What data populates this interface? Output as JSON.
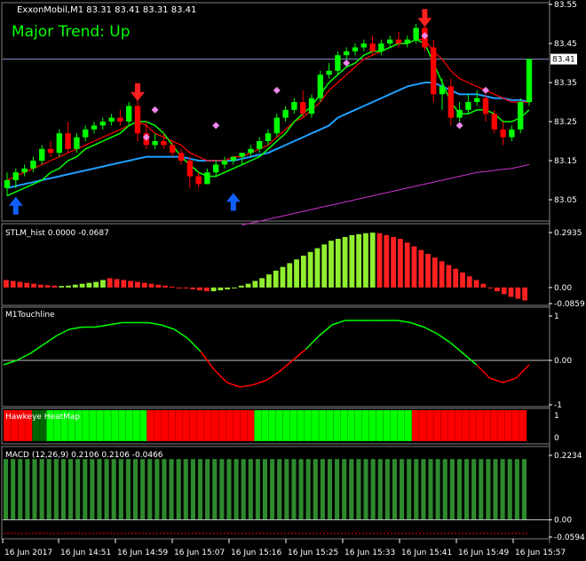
{
  "header": {
    "symbol_info": "ExxonMobil,M1  83.31 83.41 83.31 83.41",
    "trend_label": "Major Trend: Up",
    "current_price": "83.41"
  },
  "colors": {
    "bull_candle": "#00ff00",
    "bear_candle": "#ff0000",
    "ma_fast": "#00ff00",
    "ma_red": "#ff0000",
    "ma_blue": "#1e9fff",
    "ma_magenta": "#cc33cc",
    "grid": "#1f1f1f",
    "axis": "#ffffff",
    "hist_green": "#90ee30",
    "hist_red": "#ff2020",
    "macd_bar": "#2d8a2d",
    "heat_green": "#00ff00",
    "heat_red": "#ff0000",
    "heat_dark": "#006400",
    "price_line": "#8899cc"
  },
  "time_axis": {
    "labels": [
      "16 Jun 2017",
      "16 Jun 14:51",
      "16 Jun 14:59",
      "16 Jun 15:07",
      "16 Jun 15:16",
      "16 Jun 15:25",
      "16 Jun 15:33",
      "16 Jun 15:41",
      "16 Jun 15:49",
      "16 Jun 15:57"
    ]
  },
  "chart_data": [
    {
      "type": "candlestick",
      "name": "main",
      "y_ticks": [
        "83.55",
        "83.45",
        "83.35",
        "83.25",
        "83.15",
        "83.05"
      ],
      "ylim": [
        83.0,
        83.55
      ],
      "candles": [
        [
          83.08,
          83.12,
          83.06,
          83.1
        ],
        [
          83.1,
          83.13,
          83.08,
          83.12
        ],
        [
          83.12,
          83.14,
          83.11,
          83.13
        ],
        [
          83.13,
          83.16,
          83.12,
          83.15
        ],
        [
          83.15,
          83.19,
          83.14,
          83.18
        ],
        [
          83.18,
          83.2,
          83.16,
          83.17
        ],
        [
          83.17,
          83.23,
          83.16,
          83.22
        ],
        [
          83.22,
          83.25,
          83.17,
          83.18
        ],
        [
          83.18,
          83.22,
          83.17,
          83.21
        ],
        [
          83.21,
          83.24,
          83.2,
          83.23
        ],
        [
          83.23,
          83.25,
          83.22,
          83.24
        ],
        [
          83.24,
          83.26,
          83.23,
          83.25
        ],
        [
          83.25,
          83.27,
          83.24,
          83.26
        ],
        [
          83.26,
          83.28,
          83.24,
          83.25
        ],
        [
          83.25,
          83.3,
          83.24,
          83.29
        ],
        [
          83.29,
          83.32,
          83.2,
          83.22
        ],
        [
          83.22,
          83.25,
          83.18,
          83.19
        ],
        [
          83.19,
          83.22,
          83.18,
          83.2
        ],
        [
          83.2,
          83.22,
          83.18,
          83.19
        ],
        [
          83.19,
          83.2,
          83.16,
          83.17
        ],
        [
          83.17,
          83.18,
          83.14,
          83.15
        ],
        [
          83.15,
          83.16,
          83.08,
          83.11
        ],
        [
          83.11,
          83.12,
          83.08,
          83.09
        ],
        [
          83.09,
          83.13,
          83.09,
          83.12
        ],
        [
          83.12,
          83.15,
          83.11,
          83.14
        ],
        [
          83.14,
          83.16,
          83.13,
          83.15
        ],
        [
          83.15,
          83.16,
          83.14,
          83.16
        ],
        [
          83.16,
          83.17,
          83.14,
          83.17
        ],
        [
          83.17,
          83.19,
          83.16,
          83.18
        ],
        [
          83.18,
          83.21,
          83.17,
          83.2
        ],
        [
          83.2,
          83.23,
          83.19,
          83.22
        ],
        [
          83.22,
          83.27,
          83.21,
          83.26
        ],
        [
          83.26,
          83.29,
          83.25,
          83.28
        ],
        [
          83.28,
          83.31,
          83.27,
          83.3
        ],
        [
          83.3,
          83.33,
          83.26,
          83.27
        ],
        [
          83.27,
          83.32,
          83.26,
          83.31
        ],
        [
          83.31,
          83.38,
          83.3,
          83.37
        ],
        [
          83.37,
          83.4,
          83.36,
          83.38
        ],
        [
          83.38,
          83.43,
          83.37,
          83.42
        ],
        [
          83.42,
          83.44,
          83.41,
          83.43
        ],
        [
          83.43,
          83.45,
          83.42,
          83.44
        ],
        [
          83.44,
          83.46,
          83.43,
          83.45
        ],
        [
          83.45,
          83.47,
          83.42,
          83.43
        ],
        [
          83.43,
          83.46,
          83.42,
          83.45
        ],
        [
          83.45,
          83.47,
          83.44,
          83.46
        ],
        [
          83.46,
          83.48,
          83.44,
          83.45
        ],
        [
          83.45,
          83.47,
          83.44,
          83.46
        ],
        [
          83.46,
          83.5,
          83.45,
          83.49
        ],
        [
          83.49,
          83.5,
          83.43,
          83.44
        ],
        [
          83.44,
          83.46,
          83.3,
          83.32
        ],
        [
          83.32,
          83.36,
          83.28,
          83.34
        ],
        [
          83.34,
          83.36,
          83.24,
          83.26
        ],
        [
          83.26,
          83.3,
          83.25,
          83.28
        ],
        [
          83.28,
          83.32,
          83.27,
          83.3
        ],
        [
          83.3,
          83.33,
          83.29,
          83.31
        ],
        [
          83.31,
          83.32,
          83.25,
          83.27
        ],
        [
          83.27,
          83.28,
          83.22,
          83.23
        ],
        [
          83.23,
          83.25,
          83.19,
          83.21
        ],
        [
          83.21,
          83.24,
          83.2,
          83.23
        ],
        [
          83.23,
          83.31,
          83.22,
          83.3
        ],
        [
          83.3,
          83.41,
          83.29,
          83.41
        ]
      ],
      "ma_fast": [
        83.06,
        83.07,
        83.08,
        83.09,
        83.1,
        83.12,
        83.13,
        83.15,
        83.16,
        83.18,
        83.19,
        83.2,
        83.21,
        83.22,
        83.24,
        83.25,
        83.25,
        83.24,
        83.22,
        83.19,
        83.16,
        83.14,
        83.12,
        83.11,
        83.11,
        83.12,
        83.13,
        83.14,
        83.15,
        83.16,
        83.18,
        83.2,
        83.22,
        83.25,
        83.27,
        83.29,
        83.32,
        83.35,
        83.37,
        83.39,
        83.4,
        83.42,
        83.43,
        83.43,
        83.44,
        83.45,
        83.45,
        83.46,
        83.45,
        83.4,
        83.35,
        83.3,
        83.27,
        83.27,
        83.28,
        83.28,
        83.27,
        83.25,
        83.25,
        83.26,
        83.28
      ],
      "ma_red": [
        83.1,
        83.11,
        83.12,
        83.13,
        83.14,
        83.15,
        83.16,
        83.17,
        83.18,
        83.19,
        83.2,
        83.21,
        83.22,
        83.23,
        83.24,
        83.25,
        83.24,
        83.22,
        83.21,
        83.2,
        83.19,
        83.17,
        83.16,
        83.15,
        83.15,
        83.15,
        83.16,
        83.16,
        83.17,
        83.18,
        83.19,
        83.21,
        83.23,
        83.25,
        83.26,
        83.28,
        83.3,
        83.33,
        83.35,
        83.37,
        83.39,
        83.41,
        83.42,
        83.43,
        83.44,
        83.45,
        83.45,
        83.46,
        83.46,
        83.43,
        83.41,
        83.38,
        83.36,
        83.35,
        83.34,
        83.33,
        83.32,
        83.31,
        83.3,
        83.3,
        83.3
      ],
      "ma_blue": [
        83.08,
        83.085,
        83.09,
        83.095,
        83.1,
        83.105,
        83.11,
        83.115,
        83.12,
        83.125,
        83.13,
        83.135,
        83.14,
        83.145,
        83.15,
        83.155,
        83.16,
        83.16,
        83.16,
        83.16,
        83.16,
        83.155,
        83.15,
        83.15,
        83.15,
        83.15,
        83.15,
        83.155,
        83.16,
        83.165,
        83.17,
        83.18,
        83.19,
        83.2,
        83.21,
        83.22,
        83.23,
        83.24,
        83.26,
        83.27,
        83.28,
        83.29,
        83.3,
        83.31,
        83.32,
        83.33,
        83.34,
        83.345,
        83.35,
        83.35,
        83.34,
        83.33,
        83.32,
        83.32,
        83.32,
        83.315,
        83.31,
        83.31,
        83.305,
        83.305,
        83.3
      ],
      "ma_magenta": [
        null,
        null,
        null,
        null,
        null,
        null,
        null,
        null,
        null,
        null,
        null,
        null,
        null,
        null,
        null,
        null,
        null,
        null,
        null,
        null,
        null,
        null,
        null,
        null,
        null,
        null,
        null,
        82.985,
        82.99,
        82.995,
        83.0,
        83.005,
        83.01,
        83.015,
        83.02,
        83.025,
        83.03,
        83.035,
        83.04,
        83.045,
        83.05,
        83.055,
        83.06,
        83.065,
        83.07,
        83.075,
        83.08,
        83.085,
        83.09,
        83.095,
        83.1,
        83.105,
        83.11,
        83.115,
        83.12,
        83.122,
        83.125,
        83.128,
        83.13,
        83.135,
        83.14
      ],
      "current_price": 83.41,
      "arrows_up": [
        {
          "x": 1,
          "y": 83.03
        },
        {
          "x": 26,
          "y": 83.04
        }
      ],
      "arrows_down": [
        {
          "x": 15,
          "y": 83.33
        },
        {
          "x": 48,
          "y": 83.52
        }
      ],
      "diamonds": [
        [
          16,
          83.21
        ],
        [
          24,
          83.24
        ],
        [
          48,
          83.47
        ],
        [
          52,
          83.24
        ],
        [
          55,
          83.33
        ],
        [
          31,
          83.33
        ],
        [
          39,
          83.4
        ],
        [
          17,
          83.28
        ]
      ]
    },
    {
      "type": "bar",
      "name": "STLM_hist",
      "title": "STLM_hist 0.0000 -0.0687",
      "y_ticks": [
        "0.2935",
        "0.00",
        "-0.0859"
      ],
      "ylim": [
        -0.0859,
        0.2935
      ],
      "values": [
        0.04,
        0.035,
        0.03,
        0.025,
        0.02,
        0.015,
        0.012,
        0.01,
        0.008,
        0.01,
        0.015,
        0.02,
        0.025,
        0.03,
        0.04,
        0.05,
        0.045,
        0.04,
        0.035,
        0.03,
        0.025,
        0.02,
        0.015,
        0.01,
        0.005,
        0.0,
        -0.005,
        -0.01,
        -0.015,
        -0.02,
        -0.02,
        -0.015,
        -0.01,
        0.0,
        0.01,
        0.02,
        0.035,
        0.05,
        0.07,
        0.09,
        0.11,
        0.13,
        0.15,
        0.17,
        0.19,
        0.21,
        0.23,
        0.25,
        0.26,
        0.27,
        0.28,
        0.285,
        0.29,
        0.293,
        0.29,
        0.28,
        0.27,
        0.26,
        0.24,
        0.22,
        0.2,
        0.18,
        0.16,
        0.14,
        0.12,
        0.1,
        0.08,
        0.06,
        0.04,
        0.02,
        0.0,
        -0.02,
        -0.035,
        -0.05,
        -0.06,
        -0.069
      ],
      "colors": [
        "r",
        "r",
        "r",
        "r",
        "r",
        "r",
        "r",
        "r",
        "g",
        "g",
        "g",
        "g",
        "g",
        "g",
        "g",
        "r",
        "r",
        "r",
        "r",
        "r",
        "r",
        "r",
        "r",
        "r",
        "r",
        "r",
        "r",
        "r",
        "r",
        "r",
        "g",
        "g",
        "g",
        "g",
        "g",
        "g",
        "g",
        "g",
        "g",
        "g",
        "g",
        "g",
        "g",
        "g",
        "g",
        "g",
        "g",
        "g",
        "g",
        "g",
        "g",
        "g",
        "g",
        "g",
        "r",
        "r",
        "r",
        "r",
        "r",
        "r",
        "r",
        "r",
        "r",
        "r",
        "r",
        "r",
        "r",
        "r",
        "r",
        "r",
        "r",
        "r",
        "r",
        "r",
        "r",
        "r"
      ]
    },
    {
      "type": "line",
      "name": "M1Touchline",
      "title": "M1Touchline",
      "y_ticks": [
        "1",
        "0.00",
        "-1"
      ],
      "ylim": [
        -1,
        1
      ],
      "values": [
        -0.1,
        0.0,
        0.15,
        0.35,
        0.55,
        0.7,
        0.75,
        0.75,
        0.8,
        0.85,
        0.85,
        0.85,
        0.8,
        0.7,
        0.5,
        0.2,
        -0.2,
        -0.5,
        -0.6,
        -0.55,
        -0.45,
        -0.25,
        0.0,
        0.25,
        0.55,
        0.8,
        0.9,
        0.9,
        0.9,
        0.9,
        0.9,
        0.85,
        0.75,
        0.6,
        0.4,
        0.15,
        -0.1,
        -0.4,
        -0.5,
        -0.4,
        -0.1
      ],
      "colors": [
        "g",
        "g",
        "g",
        "g",
        "g",
        "g",
        "g",
        "g",
        "g",
        "g",
        "g",
        "g",
        "g",
        "g",
        "g",
        "r",
        "r",
        "r",
        "r",
        "r",
        "r",
        "r",
        "r",
        "g",
        "g",
        "g",
        "g",
        "g",
        "g",
        "g",
        "g",
        "g",
        "g",
        "g",
        "g",
        "g",
        "r",
        "r",
        "r",
        "r",
        "r"
      ]
    },
    {
      "type": "heatmap",
      "name": "Hawkeye HeatMap",
      "title": "Hawkeye HeatMap",
      "y_ticks": [
        "1",
        "0"
      ],
      "cells": [
        "r",
        "r",
        "r",
        "r",
        "d",
        "d",
        "g",
        "g",
        "g",
        "g",
        "g",
        "g",
        "g",
        "g",
        "g",
        "g",
        "g",
        "g",
        "g",
        "g",
        "r",
        "r",
        "r",
        "r",
        "r",
        "r",
        "r",
        "r",
        "r",
        "r",
        "r",
        "r",
        "r",
        "r",
        "r",
        "g",
        "g",
        "g",
        "g",
        "g",
        "g",
        "g",
        "g",
        "g",
        "g",
        "g",
        "g",
        "g",
        "g",
        "g",
        "g",
        "g",
        "g",
        "g",
        "g",
        "g",
        "g",
        "r",
        "r",
        "r",
        "r",
        "r",
        "r",
        "r",
        "r",
        "r",
        "r",
        "r",
        "r",
        "r",
        "r",
        "r",
        "r"
      ]
    },
    {
      "type": "bar",
      "name": "MACD",
      "title": "MACD (12,26,9) 0.2106 0.2106 -0.0466",
      "y_ticks": [
        "0.2234",
        "0.00",
        "-0.0594"
      ],
      "ylim": [
        -0.0594,
        0.2234
      ],
      "bar_count": 73,
      "bar_value": 0.2106,
      "signal": -0.0466
    }
  ]
}
